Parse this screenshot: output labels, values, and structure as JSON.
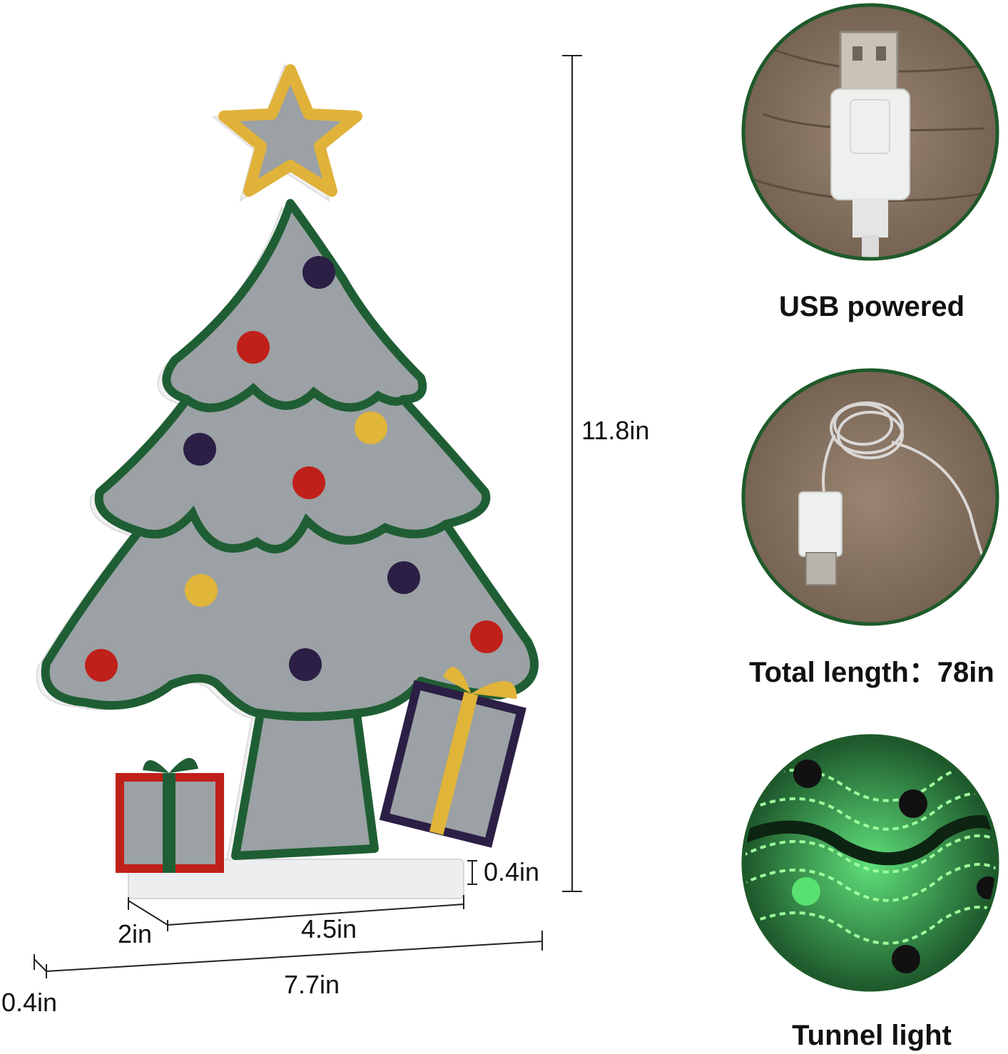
{
  "dimensions": {
    "height": "11.8in",
    "base_height": "0.4in",
    "base_width": "4.5in",
    "base_depth": "2in",
    "total_width": "7.7in",
    "thickness": "0.4in"
  },
  "features": [
    {
      "caption": "USB powered",
      "icon": "usb-plug"
    },
    {
      "caption": "Total length：78in",
      "icon": "usb-cable-coil"
    },
    {
      "caption": "Tunnel light",
      "icon": "green-tunnel-light"
    }
  ],
  "colors": {
    "tree_outline": "#1f5e34",
    "tree_fill": "#9ba1a4",
    "star": "#e0b23a",
    "ornament_red": "#c0201a",
    "ornament_yellow": "#e1b43a",
    "ornament_purple": "#2b1f45",
    "circle_border": "#1e5a2a"
  }
}
